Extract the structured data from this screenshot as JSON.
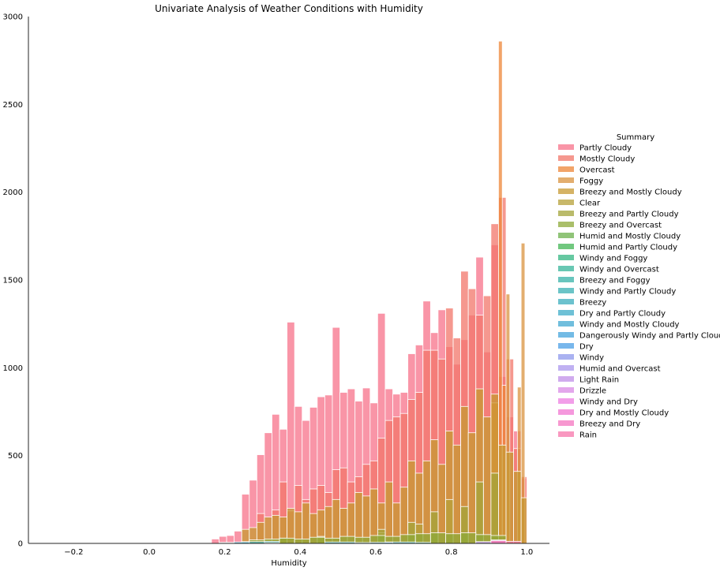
{
  "chart_data": {
    "type": "bar",
    "title": "Univariate Analysis of Weather Conditions with Humidity",
    "xlabel": "Humidity",
    "ylabel": "",
    "xlim": [
      -0.32,
      1.06
    ],
    "ylim": [
      0,
      3000
    ],
    "xticks": [
      -0.2,
      0.0,
      0.2,
      0.4,
      0.6,
      0.8,
      1.0
    ],
    "xtick_labels": [
      "−0.2",
      "0.0",
      "0.2",
      "0.4",
      "0.6",
      "0.8",
      "1.0"
    ],
    "yticks": [
      0,
      500,
      1000,
      1500,
      2000,
      2500,
      3000
    ],
    "ytick_labels": [
      "0",
      "500",
      "1000",
      "1500",
      "2000",
      "2500",
      "3000"
    ],
    "grid": false,
    "legend_title": "Summary",
    "legend_position": "center-right outside",
    "series": [
      {
        "name": "Partly Cloudy",
        "color": "#f77189",
        "bins": [
          [
            0.165,
            0.185,
            25
          ],
          [
            0.185,
            0.205,
            40
          ],
          [
            0.205,
            0.225,
            45
          ],
          [
            0.225,
            0.245,
            70
          ],
          [
            0.245,
            0.265,
            280
          ],
          [
            0.265,
            0.285,
            360
          ],
          [
            0.285,
            0.305,
            505
          ],
          [
            0.305,
            0.325,
            630
          ],
          [
            0.325,
            0.345,
            735
          ],
          [
            0.345,
            0.365,
            650
          ],
          [
            0.365,
            0.385,
            1260
          ],
          [
            0.385,
            0.405,
            780
          ],
          [
            0.405,
            0.425,
            700
          ],
          [
            0.425,
            0.445,
            775
          ],
          [
            0.445,
            0.465,
            835
          ],
          [
            0.465,
            0.485,
            845
          ],
          [
            0.485,
            0.505,
            1230
          ],
          [
            0.505,
            0.525,
            860
          ],
          [
            0.525,
            0.545,
            880
          ],
          [
            0.545,
            0.565,
            810
          ],
          [
            0.565,
            0.585,
            885
          ],
          [
            0.585,
            0.605,
            800
          ],
          [
            0.605,
            0.625,
            1310
          ],
          [
            0.625,
            0.645,
            880
          ],
          [
            0.645,
            0.665,
            850
          ],
          [
            0.665,
            0.685,
            860
          ],
          [
            0.685,
            0.705,
            1080
          ],
          [
            0.705,
            0.725,
            1130
          ],
          [
            0.725,
            0.745,
            1380
          ],
          [
            0.745,
            0.765,
            1200
          ],
          [
            0.765,
            0.785,
            1330
          ],
          [
            0.785,
            0.805,
            1120
          ],
          [
            0.805,
            0.825,
            1020
          ],
          [
            0.825,
            0.845,
            1160
          ],
          [
            0.845,
            0.865,
            1300
          ],
          [
            0.865,
            0.885,
            1630
          ],
          [
            0.885,
            0.905,
            1090
          ],
          [
            0.905,
            0.925,
            1700
          ],
          [
            0.925,
            0.945,
            950
          ],
          [
            0.945,
            0.965,
            720
          ],
          [
            0.965,
            0.985,
            640
          ],
          [
            0.985,
            1.0,
            370
          ]
        ]
      },
      {
        "name": "Mostly Cloudy",
        "color": "#f2766a",
        "bins": [
          [
            0.285,
            0.305,
            170
          ],
          [
            0.325,
            0.345,
            190
          ],
          [
            0.345,
            0.365,
            350
          ],
          [
            0.365,
            0.385,
            185
          ],
          [
            0.385,
            0.405,
            330
          ],
          [
            0.405,
            0.425,
            250
          ],
          [
            0.425,
            0.445,
            310
          ],
          [
            0.445,
            0.465,
            330
          ],
          [
            0.465,
            0.485,
            290
          ],
          [
            0.485,
            0.505,
            420
          ],
          [
            0.505,
            0.525,
            430
          ],
          [
            0.525,
            0.545,
            350
          ],
          [
            0.545,
            0.565,
            380
          ],
          [
            0.565,
            0.585,
            450
          ],
          [
            0.585,
            0.605,
            470
          ],
          [
            0.605,
            0.625,
            600
          ],
          [
            0.625,
            0.645,
            700
          ],
          [
            0.645,
            0.665,
            720
          ],
          [
            0.665,
            0.685,
            740
          ],
          [
            0.685,
            0.705,
            820
          ],
          [
            0.705,
            0.725,
            860
          ],
          [
            0.725,
            0.745,
            1100
          ],
          [
            0.745,
            0.765,
            1100
          ],
          [
            0.765,
            0.785,
            1050
          ],
          [
            0.785,
            0.805,
            1340
          ],
          [
            0.805,
            0.825,
            1170
          ],
          [
            0.825,
            0.845,
            1550
          ],
          [
            0.845,
            0.865,
            1450
          ],
          [
            0.865,
            0.885,
            1300
          ],
          [
            0.885,
            0.905,
            1410
          ],
          [
            0.905,
            0.925,
            1820
          ],
          [
            0.925,
            0.945,
            1970
          ],
          [
            0.945,
            0.965,
            1050
          ],
          [
            0.965,
            0.985,
            540
          ],
          [
            0.985,
            1.0,
            380
          ]
        ]
      },
      {
        "name": "Overcast",
        "color": "#ee8637",
        "bins": [
          [
            0.905,
            0.925,
            800
          ],
          [
            0.925,
            0.935,
            2860
          ],
          [
            0.935,
            0.945,
            900
          ]
        ]
      },
      {
        "name": "Foggy",
        "color": "#d9933f",
        "bins": [
          [
            0.945,
            0.955,
            1420
          ],
          [
            0.985,
            0.995,
            1710
          ],
          [
            0.975,
            0.985,
            890
          ]
        ]
      },
      {
        "name": "Breezy and Mostly Cloudy",
        "color": "#c79a31",
        "bins": [
          [
            0.245,
            0.265,
            80
          ],
          [
            0.265,
            0.285,
            90
          ],
          [
            0.285,
            0.305,
            120
          ],
          [
            0.305,
            0.325,
            150
          ],
          [
            0.325,
            0.345,
            160
          ],
          [
            0.345,
            0.365,
            150
          ],
          [
            0.365,
            0.385,
            200
          ],
          [
            0.385,
            0.405,
            180
          ],
          [
            0.405,
            0.425,
            230
          ],
          [
            0.425,
            0.445,
            170
          ],
          [
            0.445,
            0.465,
            190
          ],
          [
            0.465,
            0.485,
            210
          ],
          [
            0.485,
            0.505,
            250
          ],
          [
            0.505,
            0.525,
            200
          ],
          [
            0.525,
            0.545,
            230
          ],
          [
            0.545,
            0.565,
            290
          ],
          [
            0.565,
            0.585,
            270
          ],
          [
            0.585,
            0.605,
            310
          ],
          [
            0.605,
            0.625,
            230
          ],
          [
            0.625,
            0.645,
            350
          ],
          [
            0.645,
            0.665,
            230
          ],
          [
            0.665,
            0.685,
            320
          ],
          [
            0.685,
            0.705,
            470
          ],
          [
            0.705,
            0.725,
            400
          ],
          [
            0.725,
            0.745,
            470
          ],
          [
            0.745,
            0.765,
            590
          ],
          [
            0.765,
            0.785,
            450
          ],
          [
            0.785,
            0.805,
            640
          ],
          [
            0.805,
            0.825,
            560
          ],
          [
            0.825,
            0.845,
            780
          ],
          [
            0.845,
            0.865,
            630
          ],
          [
            0.865,
            0.885,
            880
          ],
          [
            0.885,
            0.905,
            720
          ],
          [
            0.905,
            0.925,
            850
          ],
          [
            0.925,
            0.945,
            560
          ],
          [
            0.945,
            0.965,
            520
          ],
          [
            0.965,
            0.985,
            410
          ],
          [
            0.985,
            1.0,
            260
          ]
        ]
      },
      {
        "name": "Clear",
        "color": "#b5a038",
        "bins": [
          [
            0.345,
            0.365,
            30
          ],
          [
            0.445,
            0.465,
            40
          ],
          [
            0.605,
            0.625,
            60
          ],
          [
            0.705,
            0.725,
            110
          ],
          [
            0.785,
            0.805,
            250
          ]
        ]
      },
      {
        "name": "Breezy and Partly Cloudy",
        "color": "#a3a43a",
        "bins": [
          [
            0.605,
            0.625,
            80
          ],
          [
            0.685,
            0.705,
            120
          ],
          [
            0.745,
            0.765,
            180
          ],
          [
            0.825,
            0.845,
            210
          ],
          [
            0.865,
            0.885,
            350
          ],
          [
            0.905,
            0.925,
            400
          ]
        ]
      },
      {
        "name": "Breezy and Overcast",
        "color": "#8ea938",
        "bins": [
          [
            0.265,
            0.305,
            20
          ],
          [
            0.305,
            0.345,
            25
          ],
          [
            0.345,
            0.385,
            30
          ],
          [
            0.385,
            0.425,
            25
          ],
          [
            0.425,
            0.465,
            35
          ],
          [
            0.465,
            0.505,
            30
          ],
          [
            0.505,
            0.545,
            40
          ],
          [
            0.545,
            0.585,
            35
          ],
          [
            0.585,
            0.625,
            45
          ],
          [
            0.625,
            0.665,
            40
          ],
          [
            0.665,
            0.705,
            50
          ],
          [
            0.705,
            0.745,
            55
          ],
          [
            0.745,
            0.785,
            60
          ],
          [
            0.785,
            0.825,
            55
          ],
          [
            0.825,
            0.865,
            60
          ],
          [
            0.865,
            0.905,
            50
          ],
          [
            0.905,
            0.945,
            45
          ]
        ]
      },
      {
        "name": "Humid and Mostly Cloudy",
        "color": "#6bb04b",
        "bins": [
          [
            0.905,
            0.945,
            10
          ]
        ]
      },
      {
        "name": "Humid and Partly Cloudy",
        "color": "#42b554",
        "bins": [
          [
            0.865,
            0.905,
            6
          ]
        ]
      },
      {
        "name": "Windy and Foggy",
        "color": "#33b582",
        "bins": []
      },
      {
        "name": "Windy and Overcast",
        "color": "#35b49a",
        "bins": [
          [
            0.705,
            0.745,
            6
          ]
        ]
      },
      {
        "name": "Breezy and Foggy",
        "color": "#37b2a8",
        "bins": [
          [
            0.905,
            0.945,
            5
          ]
        ]
      },
      {
        "name": "Windy and Partly Cloudy",
        "color": "#39b0b4",
        "bins": [
          [
            0.545,
            0.585,
            5
          ]
        ]
      },
      {
        "name": "Breezy",
        "color": "#3baebd",
        "bins": [
          [
            0.245,
            0.305,
            10
          ],
          [
            0.305,
            0.345,
            12
          ],
          [
            0.465,
            0.545,
            8
          ],
          [
            0.625,
            0.705,
            8
          ]
        ]
      },
      {
        "name": "Dry and Partly Cloudy",
        "color": "#3eacc8",
        "bins": [
          [
            0.185,
            0.225,
            6
          ],
          [
            0.225,
            0.265,
            8
          ]
        ]
      },
      {
        "name": "Windy and Mostly Cloudy",
        "color": "#40a8d2",
        "bins": [
          [
            0.585,
            0.645,
            6
          ]
        ]
      },
      {
        "name": "Dangerously Windy and Partly Cloudy",
        "color": "#44a4dc",
        "bins": []
      },
      {
        "name": "Dry",
        "color": "#4b9fe6",
        "bins": [
          [
            0.185,
            0.225,
            5
          ]
        ]
      },
      {
        "name": "Windy",
        "color": "#8e98ec",
        "bins": [
          [
            0.305,
            0.345,
            4
          ]
        ]
      },
      {
        "name": "Humid and Overcast",
        "color": "#ab97ed",
        "bins": [
          [
            0.905,
            0.945,
            5
          ]
        ]
      },
      {
        "name": "Light Rain",
        "color": "#c08fe8",
        "bins": [
          [
            0.865,
            0.905,
            10
          ],
          [
            0.905,
            0.945,
            12
          ]
        ]
      },
      {
        "name": "Drizzle",
        "color": "#d98ae6",
        "bins": [
          [
            0.905,
            0.945,
            20
          ]
        ]
      },
      {
        "name": "Windy and Dry",
        "color": "#ee7ee2",
        "bins": []
      },
      {
        "name": "Dry and Mostly Cloudy",
        "color": "#f175d2",
        "bins": [
          [
            0.185,
            0.225,
            4
          ]
        ]
      },
      {
        "name": "Breezy and Dry",
        "color": "#f475c0",
        "bins": []
      },
      {
        "name": "Rain",
        "color": "#f776ab",
        "bins": [
          [
            0.905,
            0.945,
            15
          ],
          [
            0.945,
            0.985,
            12
          ]
        ]
      }
    ]
  }
}
